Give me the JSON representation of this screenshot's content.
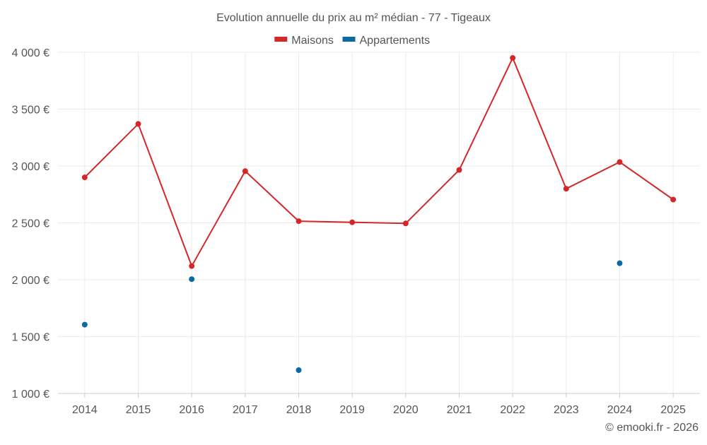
{
  "chart_data": {
    "type": "line",
    "title": "Evolution annuelle du prix au m² médian - 77 - Tigeaux",
    "categories": [
      "2014",
      "2015",
      "2016",
      "2017",
      "2018",
      "2019",
      "2020",
      "2021",
      "2022",
      "2023",
      "2024",
      "2025"
    ],
    "series": [
      {
        "name": "Maisons",
        "color": "#d62728",
        "mode": "lines+markers",
        "values": [
          2900,
          3370,
          2120,
          2955,
          2515,
          2505,
          2495,
          2965,
          3950,
          2800,
          3035,
          2705
        ]
      },
      {
        "name": "Appartements",
        "color": "#0a6aa1",
        "mode": "markers",
        "values": [
          1605,
          null,
          2005,
          null,
          1205,
          null,
          null,
          null,
          null,
          null,
          2145,
          null
        ]
      }
    ],
    "ylim": [
      1000,
      4000
    ],
    "yticks": [
      1000,
      1500,
      2000,
      2500,
      3000,
      3500,
      4000
    ],
    "ytick_labels": [
      "1 000 €",
      "1 500 €",
      "2 000 €",
      "2 500 €",
      "3 000 €",
      "3 500 €",
      "4 000 €"
    ],
    "xlabel": "",
    "ylabel": "",
    "grid": true,
    "legend_position": "top-center"
  },
  "footer": {
    "credit": "© emooki.fr - 2026"
  }
}
